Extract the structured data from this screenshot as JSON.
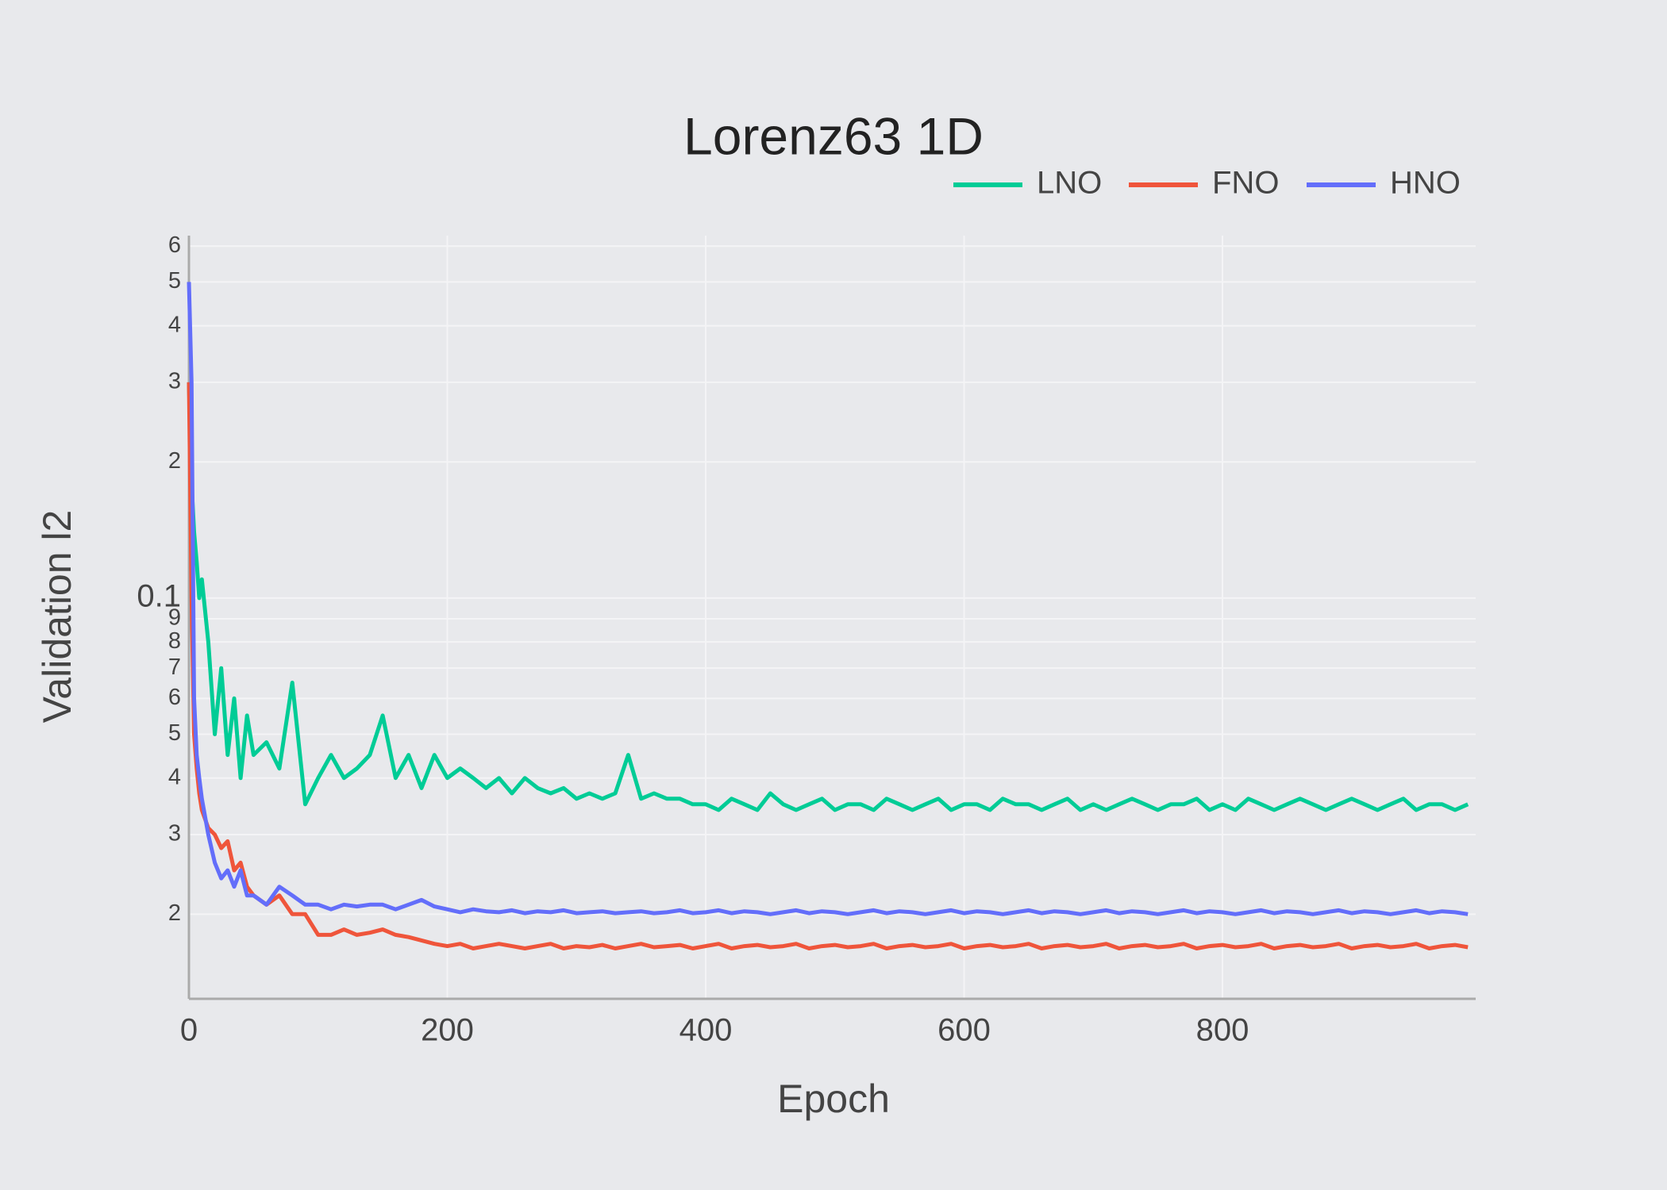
{
  "chart_data": {
    "type": "line",
    "title": "Lorenz63 1D",
    "xlabel": "Epoch",
    "ylabel": "Validation l2",
    "log_y": true,
    "grid": true,
    "legend": "top-right",
    "xlim": [
      0,
      996
    ],
    "xticks": [
      0,
      200,
      400,
      600,
      800
    ],
    "ylim": [
      0.013,
      0.633
    ],
    "yticks": [
      {
        "value": 0.02,
        "label": "2"
      },
      {
        "value": 0.03,
        "label": "3"
      },
      {
        "value": 0.04,
        "label": "4"
      },
      {
        "value": 0.05,
        "label": "5"
      },
      {
        "value": 0.06,
        "label": "6"
      },
      {
        "value": 0.07,
        "label": "7"
      },
      {
        "value": 0.08,
        "label": "8"
      },
      {
        "value": 0.09,
        "label": "9"
      },
      0.1,
      {
        "value": 0.2,
        "label": "2"
      },
      {
        "value": 0.3,
        "label": "3"
      },
      {
        "value": 0.4,
        "label": "4"
      },
      {
        "value": 0.5,
        "label": "5"
      },
      {
        "value": 0.6,
        "label": "6"
      }
    ],
    "x": [
      0,
      2,
      4,
      6,
      8,
      10,
      15,
      20,
      25,
      30,
      35,
      40,
      45,
      50,
      60,
      70,
      80,
      90,
      100,
      110,
      120,
      130,
      140,
      150,
      160,
      170,
      180,
      190,
      200,
      210,
      220,
      230,
      240,
      250,
      260,
      270,
      280,
      290,
      300,
      310,
      320,
      330,
      340,
      350,
      360,
      370,
      380,
      390,
      400,
      410,
      420,
      430,
      440,
      450,
      460,
      470,
      480,
      490,
      500,
      510,
      520,
      530,
      540,
      550,
      560,
      570,
      580,
      590,
      600,
      610,
      620,
      630,
      640,
      650,
      660,
      670,
      680,
      690,
      700,
      710,
      720,
      730,
      740,
      750,
      760,
      770,
      780,
      790,
      800,
      810,
      820,
      830,
      840,
      850,
      860,
      870,
      880,
      890,
      900,
      910,
      920,
      930,
      940,
      950,
      960,
      970,
      980,
      990
    ],
    "series": [
      {
        "name": "LNO",
        "color": "#00cc96",
        "values": [
          0.3,
          0.18,
          0.14,
          0.12,
          0.1,
          0.11,
          0.08,
          0.05,
          0.07,
          0.045,
          0.06,
          0.04,
          0.055,
          0.045,
          0.048,
          0.042,
          0.065,
          0.035,
          0.04,
          0.045,
          0.04,
          0.042,
          0.045,
          0.055,
          0.04,
          0.045,
          0.038,
          0.045,
          0.04,
          0.042,
          0.04,
          0.038,
          0.04,
          0.037,
          0.04,
          0.038,
          0.037,
          0.038,
          0.036,
          0.037,
          0.036,
          0.037,
          0.045,
          0.036,
          0.037,
          0.036,
          0.036,
          0.035,
          0.035,
          0.034,
          0.036,
          0.035,
          0.034,
          0.037,
          0.035,
          0.034,
          0.035,
          0.036,
          0.034,
          0.035,
          0.035,
          0.034,
          0.036,
          0.035,
          0.034,
          0.035,
          0.036,
          0.034,
          0.035,
          0.035,
          0.034,
          0.036,
          0.035,
          0.035,
          0.034,
          0.035,
          0.036,
          0.034,
          0.035,
          0.034,
          0.035,
          0.036,
          0.035,
          0.034,
          0.035,
          0.035,
          0.036,
          0.034,
          0.035,
          0.034,
          0.036,
          0.035,
          0.034,
          0.035,
          0.036,
          0.035,
          0.034,
          0.035,
          0.036,
          0.035,
          0.034,
          0.035,
          0.036,
          0.034,
          0.035,
          0.035,
          0.034,
          0.035
        ]
      },
      {
        "name": "FNO",
        "color": "#ef553b",
        "values": [
          0.3,
          0.1,
          0.05,
          0.042,
          0.037,
          0.034,
          0.031,
          0.03,
          0.028,
          0.029,
          0.025,
          0.026,
          0.023,
          0.022,
          0.021,
          0.022,
          0.02,
          0.02,
          0.018,
          0.018,
          0.0185,
          0.018,
          0.0182,
          0.0185,
          0.018,
          0.0178,
          0.0175,
          0.0172,
          0.017,
          0.0172,
          0.0168,
          0.017,
          0.0172,
          0.017,
          0.0168,
          0.017,
          0.0172,
          0.0168,
          0.017,
          0.0169,
          0.0171,
          0.0168,
          0.017,
          0.0172,
          0.0169,
          0.017,
          0.0171,
          0.0168,
          0.017,
          0.0172,
          0.0168,
          0.017,
          0.0171,
          0.0169,
          0.017,
          0.0172,
          0.0168,
          0.017,
          0.0171,
          0.0169,
          0.017,
          0.0172,
          0.0168,
          0.017,
          0.0171,
          0.0169,
          0.017,
          0.0172,
          0.0168,
          0.017,
          0.0171,
          0.0169,
          0.017,
          0.0172,
          0.0168,
          0.017,
          0.0171,
          0.0169,
          0.017,
          0.0172,
          0.0168,
          0.017,
          0.0171,
          0.0169,
          0.017,
          0.0172,
          0.0168,
          0.017,
          0.0171,
          0.0169,
          0.017,
          0.0172,
          0.0168,
          0.017,
          0.0171,
          0.0169,
          0.017,
          0.0172,
          0.0168,
          0.017,
          0.0171,
          0.0169,
          0.017,
          0.0172,
          0.0168,
          0.017,
          0.0171,
          0.0169
        ]
      },
      {
        "name": "HNO",
        "color": "#636efa",
        "values": [
          0.5,
          0.3,
          0.06,
          0.045,
          0.04,
          0.036,
          0.03,
          0.026,
          0.024,
          0.025,
          0.023,
          0.025,
          0.022,
          0.022,
          0.021,
          0.023,
          0.022,
          0.021,
          0.021,
          0.0205,
          0.021,
          0.0208,
          0.021,
          0.021,
          0.0205,
          0.021,
          0.0215,
          0.0208,
          0.0205,
          0.0202,
          0.0205,
          0.0203,
          0.0202,
          0.0204,
          0.0201,
          0.0203,
          0.0202,
          0.0204,
          0.0201,
          0.0202,
          0.0203,
          0.0201,
          0.0202,
          0.0203,
          0.0201,
          0.0202,
          0.0204,
          0.0201,
          0.0202,
          0.0204,
          0.0201,
          0.0203,
          0.0202,
          0.02,
          0.0202,
          0.0204,
          0.0201,
          0.0203,
          0.0202,
          0.02,
          0.0202,
          0.0204,
          0.0201,
          0.0203,
          0.0202,
          0.02,
          0.0202,
          0.0204,
          0.0201,
          0.0203,
          0.0202,
          0.02,
          0.0202,
          0.0204,
          0.0201,
          0.0203,
          0.0202,
          0.02,
          0.0202,
          0.0204,
          0.0201,
          0.0203,
          0.0202,
          0.02,
          0.0202,
          0.0204,
          0.0201,
          0.0203,
          0.0202,
          0.02,
          0.0202,
          0.0204,
          0.0201,
          0.0203,
          0.0202,
          0.02,
          0.0202,
          0.0204,
          0.0201,
          0.0203,
          0.0202,
          0.02,
          0.0202,
          0.0204,
          0.0201,
          0.0203,
          0.0202,
          0.02
        ]
      }
    ]
  }
}
